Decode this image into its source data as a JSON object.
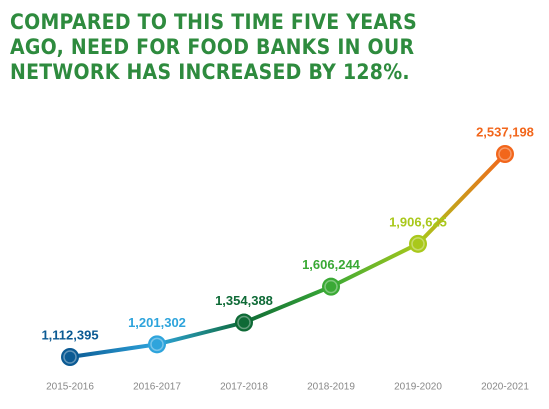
{
  "chart_data": {
    "type": "line",
    "title": "COMPARED TO THIS TIME FIVE YEARS\nAGO, NEED FOR FOOD BANKS IN OUR\nNETWORK HAS INCREASED BY 128%.",
    "categories": [
      "2015-2016",
      "2016-2017",
      "2017-2018",
      "2018-2019",
      "2019-2020",
      "2020-2021"
    ],
    "values": [
      1112395,
      1201302,
      1354388,
      1606244,
      1906625,
      2537198
    ],
    "value_labels": [
      "1,112,395",
      "1,201,302",
      "1,354,388",
      "1,606,244",
      "1,906,625",
      "2,537,198"
    ],
    "colors": [
      "#0b5a93",
      "#2ea4dc",
      "#0e6a36",
      "#3aa935",
      "#a9c81b",
      "#f2661b"
    ]
  }
}
